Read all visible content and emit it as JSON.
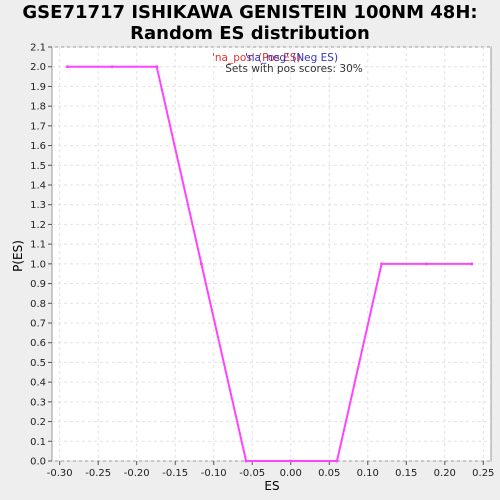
{
  "title_line1": "GSE71717 ISHIKAWA GENISTEIN 100NM 48H:",
  "title_line2": "Random ES distribution",
  "chart_data": {
    "type": "line",
    "xlabel": "ES",
    "ylabel": "P(ES)",
    "xlim": [
      -0.31,
      0.26
    ],
    "ylim": [
      0,
      2.1
    ],
    "xticks": [
      -0.3,
      -0.25,
      -0.2,
      -0.15,
      -0.1,
      -0.05,
      0.0,
      0.05,
      0.1,
      0.15,
      0.2,
      0.25
    ],
    "xtick_labels": [
      "-0.30",
      "-0.25",
      "-0.20",
      "-0.15",
      "-0.10",
      "-0.05",
      "0.00",
      "0.05",
      "0.10",
      "0.15",
      "0.20",
      "0.25"
    ],
    "yticks": [
      0.0,
      0.1,
      0.2,
      0.3,
      0.4,
      0.5,
      0.6,
      0.7,
      0.8,
      0.9,
      1.0,
      1.1,
      1.2,
      1.3,
      1.4,
      1.5,
      1.6,
      1.7,
      1.8,
      1.9,
      2.0,
      2.1
    ],
    "ytick_labels": [
      "0.0",
      "0.1",
      "0.2",
      "0.3",
      "0.4",
      "0.5",
      "0.6",
      "0.7",
      "0.8",
      "0.9",
      "1.0",
      "1.1",
      "1.2",
      "1.3",
      "1.4",
      "1.5",
      "1.6",
      "1.7",
      "1.8",
      "1.9",
      "2.0",
      "2.1"
    ],
    "grid": true,
    "legend": {
      "entries": [
        {
          "text": "'na_pos' (Pos ES)",
          "color": "#dd3333"
        },
        {
          "text": "'na_neg' (Neg ES)",
          "color": "#3333bb"
        }
      ],
      "subtitle": "Sets with pos scores: 30%"
    },
    "series": [
      {
        "color": "#ff44ff",
        "points": [
          [
            -0.29,
            2.0
          ],
          [
            -0.232,
            2.0
          ],
          [
            -0.174,
            2.0
          ],
          [
            -0.116,
            1.0
          ],
          [
            -0.058,
            0.0
          ],
          [
            0.0,
            0.0
          ],
          [
            0.06,
            0.0
          ],
          [
            0.118,
            1.0
          ],
          [
            0.176,
            1.0
          ],
          [
            0.235,
            1.0
          ]
        ]
      }
    ]
  }
}
